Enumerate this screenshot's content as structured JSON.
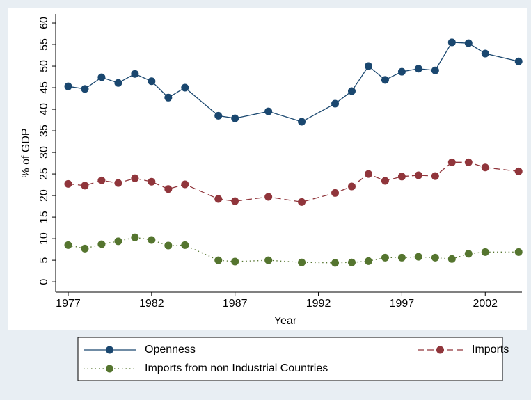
{
  "chart_data": {
    "type": "line",
    "x_label": "Year",
    "y_label": "% of GDP",
    "x": [
      1977,
      1978,
      1979,
      1980,
      1981,
      1982,
      1983,
      1984,
      1986,
      1987,
      1989,
      1991,
      1993,
      1994,
      1995,
      1996,
      1997,
      1998,
      1999,
      2000,
      2001,
      2002,
      2004
    ],
    "series": [
      {
        "name": "Openness",
        "color": "#1a476f",
        "dash": "solid",
        "values": [
          45.3,
          44.7,
          47.4,
          46.1,
          48.2,
          46.5,
          42.7,
          45.0,
          38.5,
          37.9,
          39.5,
          37.1,
          41.3,
          44.2,
          50.0,
          46.8,
          48.7,
          49.4,
          49.0,
          55.5,
          55.3,
          52.9,
          51.1
        ]
      },
      {
        "name": "Imports",
        "color": "#90353b",
        "dash": "dashed",
        "values": [
          22.7,
          22.3,
          23.5,
          22.9,
          24.0,
          23.2,
          21.5,
          22.6,
          19.2,
          18.7,
          19.7,
          18.5,
          20.6,
          22.1,
          25.0,
          23.4,
          24.4,
          24.7,
          24.5,
          27.7,
          27.7,
          26.5,
          25.6
        ]
      },
      {
        "name": "Imports from non Industrial Countries",
        "color": "#55752f",
        "dash": "dotted",
        "values": [
          8.5,
          7.7,
          8.7,
          9.4,
          10.3,
          9.7,
          8.4,
          8.5,
          5.0,
          4.7,
          5.0,
          4.5,
          4.4,
          4.5,
          4.8,
          5.6,
          5.6,
          5.8,
          5.6,
          5.3,
          6.5,
          6.9,
          6.9
        ]
      }
    ],
    "xlim": [
      1976.25,
      2004.2
    ],
    "xticks": [
      1977,
      1982,
      1987,
      1992,
      1997,
      2002
    ],
    "ylim": [
      -2.4,
      62.1
    ],
    "yticks": [
      0,
      5,
      10,
      15,
      20,
      25,
      30,
      35,
      40,
      45,
      50,
      55,
      60
    ],
    "grid": false
  }
}
